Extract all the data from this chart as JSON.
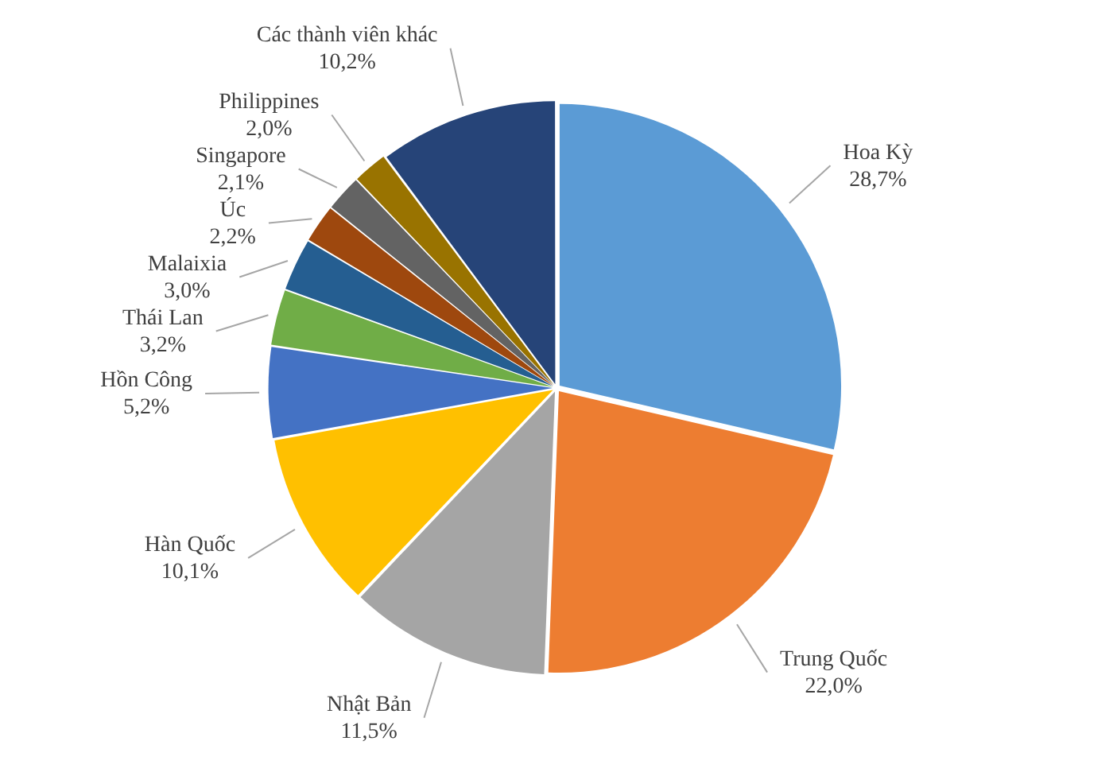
{
  "chart_data": {
    "type": "pie",
    "categories": [
      "Hoa Kỳ",
      "Trung Quốc",
      "Nhật Bản",
      "Hàn Quốc",
      "Hồn Công",
      "Thái Lan",
      "Malaixia",
      "Úc",
      "Singapore",
      "Philippines",
      "Các thành viên khác"
    ],
    "values": [
      28.7,
      22.0,
      11.5,
      10.1,
      5.2,
      3.2,
      3.0,
      2.2,
      2.1,
      2.0,
      10.2
    ],
    "value_labels": [
      "28,7%",
      "22,0%",
      "11,5%",
      "10,1%",
      "5,2%",
      "3,2%",
      "3,0%",
      "2,2%",
      "2,1%",
      "2,0%",
      "10,2%"
    ],
    "colors": [
      "#5b9bd5",
      "#ed7d31",
      "#a5a5a5",
      "#ffc000",
      "#4472c4",
      "#70ad47",
      "#255e91",
      "#9e480e",
      "#636363",
      "#997300",
      "#264478"
    ],
    "legend": false
  }
}
